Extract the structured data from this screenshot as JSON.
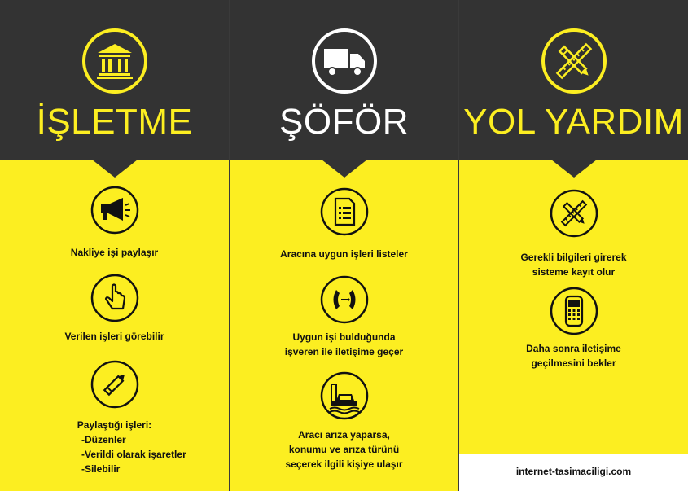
{
  "columns": [
    {
      "title": "İŞLETME",
      "header_icon": "bank-icon",
      "items": [
        {
          "icon": "megaphone-icon",
          "text": "Nakliye işi paylaşır"
        },
        {
          "icon": "pointer-hand-icon",
          "text": "Verilen işleri görebilir"
        },
        {
          "icon": "pencil-icon",
          "text": "Paylaştığı işleri:",
          "list": [
            "-Düzenler",
            "-Verildi olarak işaretler",
            "-Silebilir"
          ]
        }
      ]
    },
    {
      "title": "ŞÖFÖR",
      "header_icon": "truck-icon",
      "items": [
        {
          "icon": "document-list-icon",
          "text": "Aracına uygun işleri listeler"
        },
        {
          "icon": "phone-call-icon",
          "lines": [
            "Uygun işi bulduğunda",
            "işveren ile iletişime geçer"
          ]
        },
        {
          "icon": "tow-truck-icon",
          "lines": [
            "Aracı arıza yaparsa,",
            "konumu ve arıza türünü",
            "seçerek ilgili kişiye ulaşır"
          ]
        }
      ]
    },
    {
      "title": "YOL YARDIM",
      "header_icon": "pencil-ruler-icon",
      "items": [
        {
          "icon": "pencil-ruler-icon",
          "lines": [
            "Gerekli bilgileri girerek",
            "sisteme kayıt olur"
          ]
        },
        {
          "icon": "mobile-phone-icon",
          "lines": [
            "Daha sonra iletişime",
            "geçilmesini bekler"
          ]
        }
      ],
      "footer": "internet-tasimaciligi.com"
    }
  ],
  "colors": {
    "yellow": "#fcee21",
    "dark": "#333333",
    "white": "#ffffff"
  }
}
